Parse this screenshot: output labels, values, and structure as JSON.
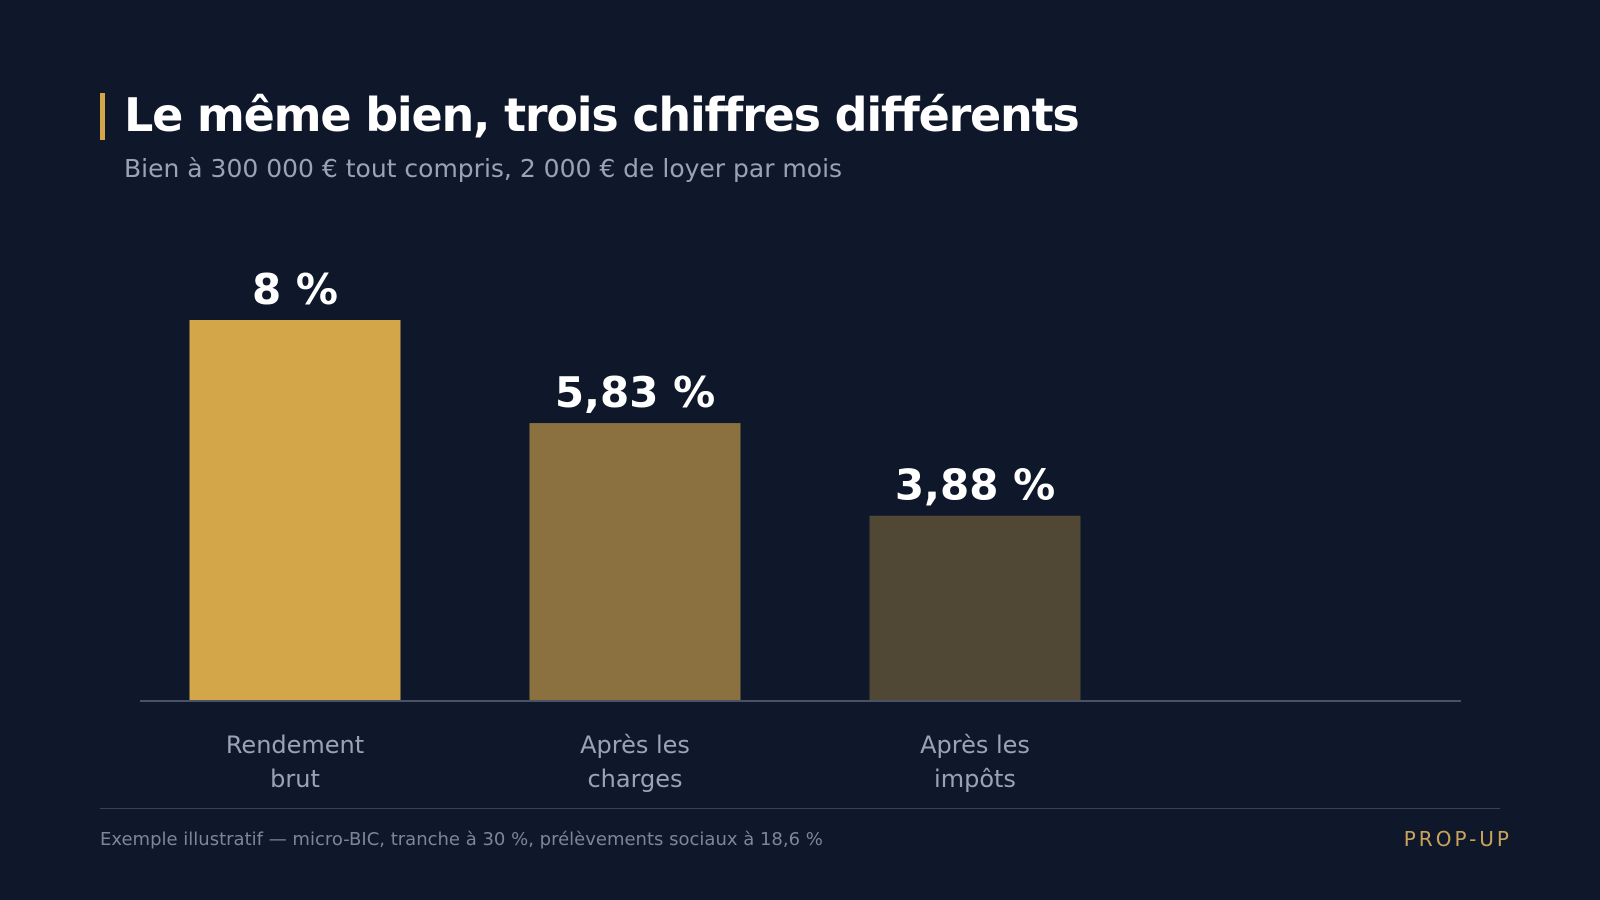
{
  "header": {
    "title": "Le même bien, trois chiffres différents",
    "subtitle": "Bien à 300 000 € tout compris, 2 000 € de loyer par mois"
  },
  "chart_data": {
    "type": "bar",
    "categories": [
      [
        "Rendement",
        "brut"
      ],
      [
        "Après les",
        "charges"
      ],
      [
        "Après les",
        "impôts"
      ]
    ],
    "values": [
      8,
      5.83,
      3.88
    ],
    "value_labels": [
      "8 %",
      "5,83 %",
      "3,88 %"
    ],
    "colors": [
      "#d4a64a",
      "#8a713f",
      "#514735"
    ],
    "ylim": [
      0,
      8
    ],
    "grid": false,
    "title": "",
    "xlabel": "",
    "ylabel": ""
  },
  "footer": {
    "note": "Exemple illustratif — micro-BIC, tranche à 30 %, prélèvements sociaux à 18,6 %",
    "brand": "PROP-UP"
  }
}
